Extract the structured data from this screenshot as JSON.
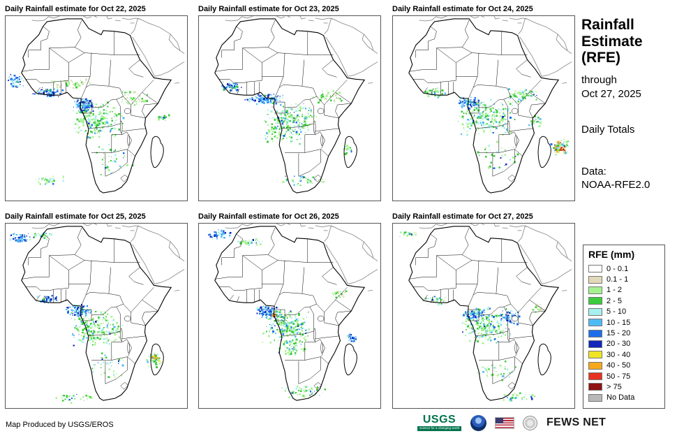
{
  "panels": [
    {
      "title": "Daily Rainfall estimate for Oct 22, 2025"
    },
    {
      "title": "Daily Rainfall estimate for Oct 23, 2025"
    },
    {
      "title": "Daily Rainfall estimate for Oct 24, 2025"
    },
    {
      "title": "Daily Rainfall estimate for Oct 25, 2025"
    },
    {
      "title": "Daily Rainfall estimate for Oct 26, 2025"
    },
    {
      "title": "Daily Rainfall estimate for Oct 27, 2025"
    }
  ],
  "sidebar": {
    "title": "Rainfall Estimate (RFE)",
    "through": "through",
    "date": "Oct 27, 2025",
    "totals": "Daily Totals",
    "data_label": "Data:",
    "data_source": "NOAA-RFE2.0"
  },
  "legend": {
    "title": "RFE (mm)",
    "entries": [
      {
        "label": "0 - 0.1",
        "color": "#FFFFFF"
      },
      {
        "label": "0.1 - 1",
        "color": "#E1D9B8"
      },
      {
        "label": "1 - 2",
        "color": "#A6F28F"
      },
      {
        "label": "2 - 5",
        "color": "#3BCC3B"
      },
      {
        "label": "5 - 10",
        "color": "#A8F0EE"
      },
      {
        "label": "10 - 15",
        "color": "#4FBBF5"
      },
      {
        "label": "15 - 20",
        "color": "#1E6EEB"
      },
      {
        "label": "20 - 30",
        "color": "#1226BB"
      },
      {
        "label": "30 - 40",
        "color": "#EFE524"
      },
      {
        "label": "40 - 50",
        "color": "#F5A81C"
      },
      {
        "label": "50 - 75",
        "color": "#E6321E"
      },
      {
        "label": "> 75",
        "color": "#8F1414"
      },
      {
        "label": "No Data",
        "color": "#B8B8B8"
      }
    ]
  },
  "footer": {
    "credit": "Map Produced by USGS/EROS"
  },
  "logos": {
    "usgs_text": "USGS",
    "usgs_tagline": "science for a changing world",
    "fews_text": "FEWS NET"
  }
}
